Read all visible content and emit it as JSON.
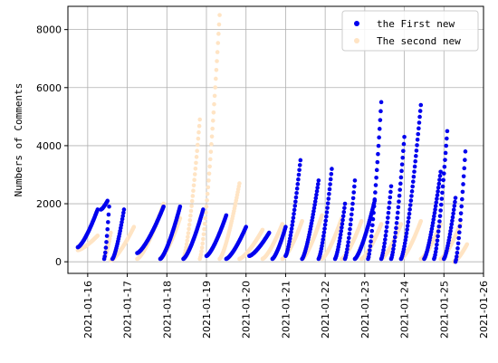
{
  "chart_data": {
    "type": "scatter",
    "title": "",
    "xlabel": "",
    "ylabel": "Numbers of Comments",
    "xlim": [
      "2021-01-15 12:00",
      "2021-01-26 00:00"
    ],
    "ylim": [
      -400,
      8800
    ],
    "x_ticks": [
      "2021-01-16",
      "2021-01-17",
      "2021-01-18",
      "2021-01-19",
      "2021-01-20",
      "2021-01-21",
      "2021-01-22",
      "2021-01-23",
      "2021-01-24",
      "2021-01-25",
      "2021-01-26"
    ],
    "y_ticks": [
      0,
      2000,
      4000,
      6000,
      8000
    ],
    "grid": true,
    "legend_position": "top-right",
    "series": [
      {
        "name": "the First new",
        "color": "#0000ee",
        "runs": [
          {
            "start": "2021-01-15 18:00",
            "end": "2021-01-16 06:00",
            "v0": 500,
            "v1": 1800
          },
          {
            "start": "2021-01-16 08:00",
            "end": "2021-01-16 12:00",
            "v0": 1800,
            "v1": 2100
          },
          {
            "start": "2021-01-16 10:00",
            "end": "2021-01-16 13:00",
            "v0": 100,
            "v1": 1900
          },
          {
            "start": "2021-01-16 15:00",
            "end": "2021-01-16 22:00",
            "v0": 100,
            "v1": 1800
          },
          {
            "start": "2021-01-17 06:00",
            "end": "2021-01-17 22:00",
            "v0": 300,
            "v1": 1900
          },
          {
            "start": "2021-01-17 20:00",
            "end": "2021-01-18 08:00",
            "v0": 100,
            "v1": 1900
          },
          {
            "start": "2021-01-18 10:00",
            "end": "2021-01-18 22:00",
            "v0": 100,
            "v1": 1800
          },
          {
            "start": "2021-01-19 00:00",
            "end": "2021-01-19 12:00",
            "v0": 200,
            "v1": 1600
          },
          {
            "start": "2021-01-19 12:00",
            "end": "2021-01-20 00:00",
            "v0": 100,
            "v1": 1200
          },
          {
            "start": "2021-01-20 02:00",
            "end": "2021-01-20 14:00",
            "v0": 200,
            "v1": 1000
          },
          {
            "start": "2021-01-20 16:00",
            "end": "2021-01-21 00:00",
            "v0": 100,
            "v1": 1200
          },
          {
            "start": "2021-01-21 00:00",
            "end": "2021-01-21 09:00",
            "v0": 200,
            "v1": 3500
          },
          {
            "start": "2021-01-21 10:00",
            "end": "2021-01-21 20:00",
            "v0": 100,
            "v1": 2800
          },
          {
            "start": "2021-01-21 20:00",
            "end": "2021-01-22 04:00",
            "v0": 100,
            "v1": 3200
          },
          {
            "start": "2021-01-22 06:00",
            "end": "2021-01-22 12:00",
            "v0": 100,
            "v1": 2000
          },
          {
            "start": "2021-01-22 12:00",
            "end": "2021-01-22 18:00",
            "v0": 100,
            "v1": 2800
          },
          {
            "start": "2021-01-22 18:00",
            "end": "2021-01-23 06:00",
            "v0": 100,
            "v1": 2100
          },
          {
            "start": "2021-01-23 02:00",
            "end": "2021-01-23 10:00",
            "v0": 100,
            "v1": 5500
          },
          {
            "start": "2021-01-23 10:00",
            "end": "2021-01-23 16:00",
            "v0": 100,
            "v1": 2600
          },
          {
            "start": "2021-01-23 16:00",
            "end": "2021-01-24 00:00",
            "v0": 100,
            "v1": 4300
          },
          {
            "start": "2021-01-23 22:00",
            "end": "2021-01-24 10:00",
            "v0": 100,
            "v1": 5400
          },
          {
            "start": "2021-01-24 12:00",
            "end": "2021-01-24 22:00",
            "v0": 100,
            "v1": 3100
          },
          {
            "start": "2021-01-24 18:00",
            "end": "2021-01-25 02:00",
            "v0": 100,
            "v1": 4500
          },
          {
            "start": "2021-01-25 00:00",
            "end": "2021-01-25 07:00",
            "v0": 100,
            "v1": 2200
          },
          {
            "start": "2021-01-25 07:00",
            "end": "2021-01-25 13:00",
            "v0": 0,
            "v1": 3800
          }
        ]
      },
      {
        "name": "The second new",
        "color": "#ffe4c4",
        "runs": [
          {
            "start": "2021-01-15 18:00",
            "end": "2021-01-16 06:00",
            "v0": 400,
            "v1": 900
          },
          {
            "start": "2021-01-16 10:00",
            "end": "2021-01-16 14:00",
            "v0": 100,
            "v1": 1000
          },
          {
            "start": "2021-01-16 14:00",
            "end": "2021-01-17 04:00",
            "v0": 50,
            "v1": 1200
          },
          {
            "start": "2021-01-17 06:00",
            "end": "2021-01-17 22:00",
            "v0": 100,
            "v1": 2000
          },
          {
            "start": "2021-01-17 20:00",
            "end": "2021-01-18 08:00",
            "v0": 100,
            "v1": 1500
          },
          {
            "start": "2021-01-18 10:00",
            "end": "2021-01-18 20:00",
            "v0": 100,
            "v1": 4900
          },
          {
            "start": "2021-01-18 20:00",
            "end": "2021-01-19 08:00",
            "v0": 100,
            "v1": 8500
          },
          {
            "start": "2021-01-19 08:00",
            "end": "2021-01-19 20:00",
            "v0": 100,
            "v1": 2700
          },
          {
            "start": "2021-01-19 20:00",
            "end": "2021-01-20 10:00",
            "v0": 100,
            "v1": 1100
          },
          {
            "start": "2021-01-20 10:00",
            "end": "2021-01-20 22:00",
            "v0": 100,
            "v1": 1300
          },
          {
            "start": "2021-01-20 22:00",
            "end": "2021-01-21 10:00",
            "v0": 100,
            "v1": 1400
          },
          {
            "start": "2021-01-21 10:00",
            "end": "2021-01-21 22:00",
            "v0": 100,
            "v1": 1600
          },
          {
            "start": "2021-01-21 22:00",
            "end": "2021-01-22 10:00",
            "v0": 100,
            "v1": 1500
          },
          {
            "start": "2021-01-22 10:00",
            "end": "2021-01-22 22:00",
            "v0": 100,
            "v1": 1400
          },
          {
            "start": "2021-01-22 22:00",
            "end": "2021-01-23 10:00",
            "v0": 100,
            "v1": 1300
          },
          {
            "start": "2021-01-23 10:00",
            "end": "2021-01-23 22:00",
            "v0": 100,
            "v1": 1300
          },
          {
            "start": "2021-01-23 22:00",
            "end": "2021-01-24 10:00",
            "v0": 100,
            "v1": 1400
          },
          {
            "start": "2021-01-24 10:00",
            "end": "2021-01-24 22:00",
            "v0": 100,
            "v1": 1300
          },
          {
            "start": "2021-01-24 22:00",
            "end": "2021-01-25 10:00",
            "v0": 100,
            "v1": 1300
          },
          {
            "start": "2021-01-25 06:00",
            "end": "2021-01-25 14:00",
            "v0": 0,
            "v1": 600
          }
        ]
      }
    ]
  }
}
